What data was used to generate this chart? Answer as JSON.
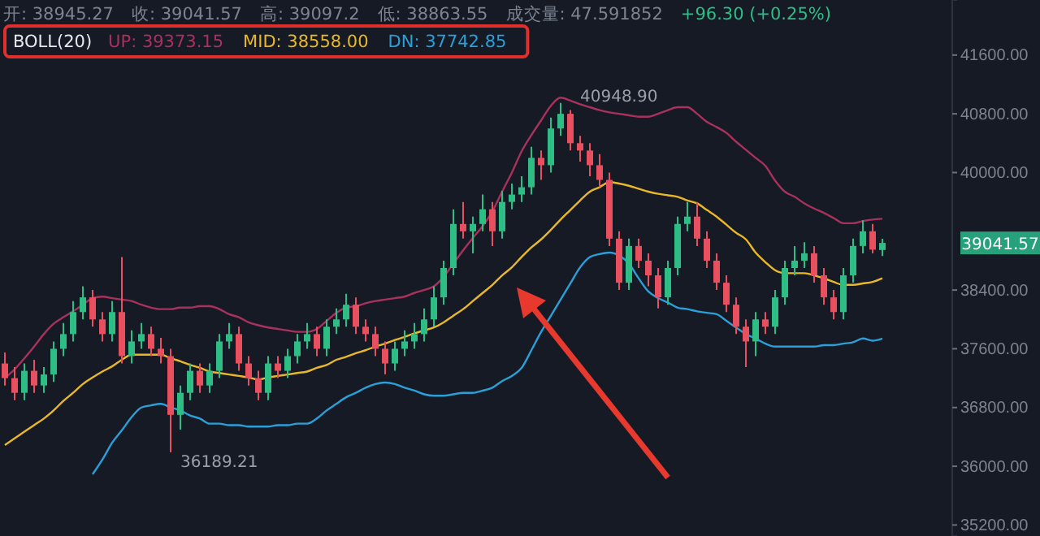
{
  "chart_data": {
    "type": "candlestick",
    "categories": [
      null,
      null,
      null,
      null,
      null,
      null,
      null,
      null,
      null,
      null,
      null,
      null,
      null,
      null,
      null,
      null,
      null,
      null,
      null,
      null,
      null,
      null,
      null,
      null,
      null,
      null,
      null,
      null,
      null,
      null,
      null,
      null,
      null,
      null,
      null,
      null,
      null,
      null,
      null,
      null,
      null,
      null,
      null,
      null,
      null,
      null,
      null,
      null,
      null,
      null,
      null,
      null,
      null,
      null,
      null,
      null,
      null,
      null,
      null,
      null,
      null,
      null,
      null,
      null,
      null,
      null,
      null,
      null,
      null,
      null,
      null,
      null,
      null,
      null,
      null,
      null,
      null,
      null,
      null,
      null,
      null,
      null,
      null,
      null,
      null,
      null,
      null,
      null,
      null,
      null,
      null
    ],
    "ohlc": [
      [
        37400,
        37550,
        37100,
        37200
      ],
      [
        37200,
        37350,
        36900,
        37000
      ],
      [
        37000,
        37400,
        36900,
        37300
      ],
      [
        37300,
        37450,
        37000,
        37100
      ],
      [
        37100,
        37350,
        37000,
        37250
      ],
      [
        37250,
        37700,
        37150,
        37600
      ],
      [
        37600,
        37950,
        37500,
        37800
      ],
      [
        37800,
        38250,
        37700,
        38100
      ],
      [
        38100,
        38450,
        38000,
        38300
      ],
      [
        38300,
        38400,
        37900,
        38000
      ],
      [
        38000,
        38100,
        37700,
        37800
      ],
      [
        37800,
        38250,
        37700,
        38100
      ],
      [
        38100,
        38850,
        37400,
        37500
      ],
      [
        37500,
        37850,
        37400,
        37700
      ],
      [
        37700,
        37950,
        37600,
        37800
      ],
      [
        37800,
        37900,
        37500,
        37600
      ],
      [
        37600,
        37750,
        37400,
        37500
      ],
      [
        37500,
        37600,
        36189.21,
        36700
      ],
      [
        36700,
        37100,
        36500,
        37000
      ],
      [
        37000,
        37400,
        36900,
        37300
      ],
      [
        37300,
        37400,
        37000,
        37100
      ],
      [
        37100,
        37400,
        37000,
        37300
      ],
      [
        37300,
        37800,
        37200,
        37700
      ],
      [
        37700,
        37950,
        37600,
        37800
      ],
      [
        37800,
        37900,
        37300,
        37400
      ],
      [
        37400,
        37500,
        37100,
        37200
      ],
      [
        37200,
        37300,
        36900,
        37000
      ],
      [
        37000,
        37500,
        36900,
        37400
      ],
      [
        37400,
        37500,
        37200,
        37300
      ],
      [
        37300,
        37600,
        37200,
        37500
      ],
      [
        37500,
        37800,
        37400,
        37700
      ],
      [
        37700,
        37950,
        37600,
        37800
      ],
      [
        37800,
        37900,
        37500,
        37600
      ],
      [
        37600,
        38000,
        37500,
        37900
      ],
      [
        37900,
        38150,
        37800,
        38000
      ],
      [
        38000,
        38350,
        37900,
        38200
      ],
      [
        38200,
        38300,
        37800,
        37900
      ],
      [
        37900,
        38000,
        37700,
        37800
      ],
      [
        37800,
        37900,
        37500,
        37600
      ],
      [
        37600,
        37700,
        37250,
        37400
      ],
      [
        37400,
        37700,
        37300,
        37600
      ],
      [
        37600,
        37850,
        37500,
        37700
      ],
      [
        37700,
        37950,
        37600,
        37800
      ],
      [
        37800,
        38150,
        37700,
        38000
      ],
      [
        38000,
        38450,
        37900,
        38300
      ],
      [
        38300,
        38800,
        38200,
        38700
      ],
      [
        38700,
        39500,
        38600,
        39300
      ],
      [
        39300,
        39600,
        39100,
        39200
      ],
      [
        39200,
        39400,
        38900,
        39300
      ],
      [
        39300,
        39700,
        39200,
        39500
      ],
      [
        39500,
        39600,
        39000,
        39200
      ],
      [
        39200,
        39750,
        39100,
        39600
      ],
      [
        39600,
        39850,
        39500,
        39700
      ],
      [
        39700,
        39950,
        39600,
        39800
      ],
      [
        39800,
        40350,
        39700,
        40200
      ],
      [
        40200,
        40300,
        39900,
        40100
      ],
      [
        40100,
        40750,
        40000,
        40600
      ],
      [
        40600,
        40948.9,
        40500,
        40800
      ],
      [
        40800,
        40850,
        40300,
        40400
      ],
      [
        40400,
        40500,
        40150,
        40300
      ],
      [
        40300,
        40400,
        39950,
        40100
      ],
      [
        40100,
        40250,
        39800,
        39900
      ],
      [
        39900,
        40000,
        39000,
        39100
      ],
      [
        39100,
        39200,
        38400,
        38500
      ],
      [
        38500,
        39100,
        38400,
        39000
      ],
      [
        39000,
        39100,
        38700,
        38800
      ],
      [
        38800,
        38900,
        38450,
        38600
      ],
      [
        38600,
        38700,
        38150,
        38300
      ],
      [
        38300,
        38800,
        38200,
        38700
      ],
      [
        38700,
        39400,
        38600,
        39300
      ],
      [
        39300,
        39600,
        39200,
        39400
      ],
      [
        39400,
        39600,
        39000,
        39100
      ],
      [
        39100,
        39200,
        38700,
        38800
      ],
      [
        38800,
        38900,
        38400,
        38500
      ],
      [
        38500,
        38600,
        38100,
        38200
      ],
      [
        38200,
        38300,
        37800,
        37900
      ],
      [
        37900,
        38000,
        37350,
        37700
      ],
      [
        37700,
        38100,
        37500,
        38000
      ],
      [
        38000,
        38100,
        37800,
        37900
      ],
      [
        37900,
        38400,
        37800,
        38300
      ],
      [
        38300,
        38800,
        38200,
        38700
      ],
      [
        38700,
        39000,
        38600,
        38800
      ],
      [
        38800,
        39050,
        38700,
        38900
      ],
      [
        38900,
        39000,
        38500,
        38600
      ],
      [
        38600,
        38700,
        38200,
        38300
      ],
      [
        38300,
        38400,
        38000,
        38100
      ],
      [
        38100,
        38700,
        38000,
        38600
      ],
      [
        38600,
        39100,
        38500,
        39000
      ],
      [
        39000,
        39350,
        38900,
        39200
      ],
      [
        39200,
        39300,
        38900,
        38950
      ],
      [
        38945.27,
        39097.2,
        38863.55,
        39041.57
      ]
    ],
    "series": [
      {
        "type": "line",
        "name": "UP: 39373.15",
        "color": "#a8325c",
        "values": [
          37200,
          37320,
          37470,
          37630,
          37800,
          37940,
          38030,
          38110,
          38200,
          38290,
          38310,
          38290,
          38270,
          38250,
          38200,
          38160,
          38140,
          38140,
          38160,
          38160,
          38180,
          38180,
          38140,
          38070,
          38030,
          37960,
          37920,
          37890,
          37870,
          37850,
          37830,
          37830,
          37870,
          37980,
          38090,
          38160,
          38180,
          38220,
          38250,
          38270,
          38290,
          38310,
          38360,
          38400,
          38450,
          38580,
          38760,
          38940,
          39110,
          39270,
          39470,
          39740,
          40000,
          40290,
          40510,
          40710,
          40910,
          41020,
          40980,
          40930,
          40890,
          40850,
          40820,
          40800,
          40780,
          40760,
          40760,
          40800,
          40850,
          40890,
          40890,
          40800,
          40690,
          40620,
          40540,
          40420,
          40310,
          40200,
          40090,
          39890,
          39740,
          39670,
          39580,
          39510,
          39450,
          39380,
          39310,
          39310,
          39340,
          39360,
          39370
        ]
      },
      {
        "type": "line",
        "name": "MID: 38558.00",
        "color": "#e8b829",
        "values": [
          36290,
          36380,
          36470,
          36560,
          36650,
          36760,
          36890,
          37000,
          37120,
          37210,
          37290,
          37360,
          37450,
          37520,
          37520,
          37520,
          37520,
          37470,
          37430,
          37380,
          37340,
          37290,
          37270,
          37250,
          37230,
          37210,
          37180,
          37210,
          37230,
          37250,
          37270,
          37290,
          37340,
          37380,
          37450,
          37490,
          37540,
          37580,
          37630,
          37670,
          37720,
          37760,
          37810,
          37850,
          37890,
          37960,
          38050,
          38140,
          38250,
          38360,
          38470,
          38600,
          38710,
          38850,
          38980,
          39090,
          39220,
          39360,
          39490,
          39620,
          39740,
          39800,
          39870,
          39850,
          39820,
          39780,
          39740,
          39710,
          39690,
          39670,
          39620,
          39580,
          39490,
          39400,
          39290,
          39180,
          39090,
          38910,
          38780,
          38670,
          38630,
          38630,
          38630,
          38600,
          38560,
          38510,
          38470,
          38470,
          38490,
          38510,
          38560
        ]
      },
      {
        "type": "line",
        "name": "DN: 37742.85",
        "color": "#2a9fd8",
        "values": [
          null,
          null,
          null,
          null,
          null,
          null,
          null,
          null,
          null,
          35890,
          36090,
          36320,
          36490,
          36670,
          36800,
          36830,
          36850,
          36800,
          36760,
          36690,
          36650,
          36580,
          36580,
          36560,
          36560,
          36540,
          36540,
          36540,
          36560,
          36560,
          36580,
          36580,
          36650,
          36760,
          36850,
          36940,
          37000,
          37070,
          37120,
          37140,
          37120,
          37070,
          37030,
          36980,
          36960,
          36960,
          36980,
          37000,
          37000,
          37030,
          37070,
          37160,
          37230,
          37340,
          37580,
          37830,
          38050,
          38270,
          38490,
          38710,
          38850,
          38890,
          38910,
          38870,
          38760,
          38560,
          38380,
          38290,
          38230,
          38160,
          38140,
          38110,
          38090,
          38070,
          37980,
          37890,
          37800,
          37740,
          37670,
          37630,
          37630,
          37630,
          37630,
          37630,
          37650,
          37650,
          37670,
          37690,
          37740,
          37710,
          37740
        ]
      }
    ],
    "ylim": [
      35050,
      42350
    ],
    "yticks": [
      {
        "value": 35200,
        "label": "35200.00"
      },
      {
        "value": 36000,
        "label": "36000.00"
      },
      {
        "value": 36800,
        "label": "36800.00"
      },
      {
        "value": 37600,
        "label": "37600.00"
      },
      {
        "value": 38400,
        "label": "38400.00"
      },
      {
        "value": 40000,
        "label": "40000.00"
      },
      {
        "value": 40800,
        "label": "40800.00"
      },
      {
        "value": 41600,
        "label": "41600.00"
      }
    ],
    "tick_labels": "y",
    "legend": "top left",
    "legend_title": "BOLL(20)",
    "annotations": [
      "开: 38945.27",
      "收: 39041.57",
      "高: 39097.2",
      "低: 38863.55",
      "成交量: 47.591852",
      "+96.30 (+0.25%)",
      "40948.90",
      "36189.21",
      "39041.57"
    ]
  }
}
